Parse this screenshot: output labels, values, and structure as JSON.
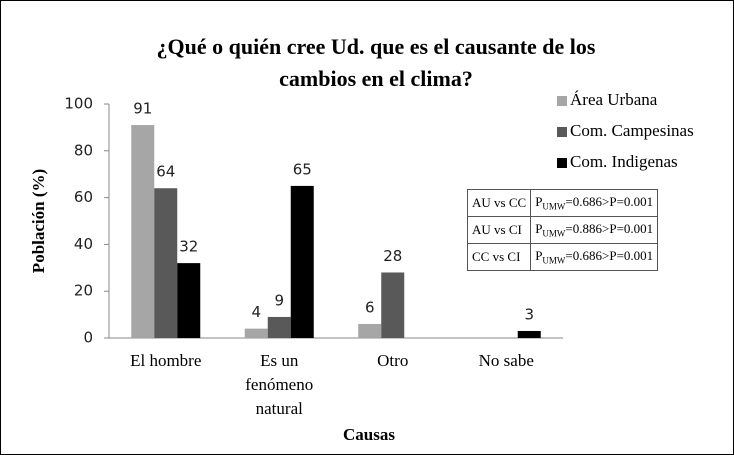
{
  "chart_data": {
    "type": "bar",
    "title": "¿Qué o quién cree Ud. que es el causante de los cambios en el clima?",
    "xlabel": "Causas",
    "ylabel": "Población (%)",
    "categories": [
      "El hombre",
      "Es un fenómeno natural",
      "Otro",
      "No sabe"
    ],
    "series": [
      {
        "name": "Área Urbana",
        "color": "#a6a6a6",
        "values": [
          91,
          4,
          6,
          null
        ]
      },
      {
        "name": "Com. Campesinas",
        "color": "#595959",
        "values": [
          64,
          9,
          28,
          null
        ]
      },
      {
        "name": "Com. Indigenas",
        "color": "#000000",
        "values": [
          32,
          65,
          null,
          3
        ]
      }
    ],
    "ylim": [
      0,
      100
    ],
    "yticks": [
      0,
      20,
      40,
      60,
      80,
      100
    ],
    "grid": false,
    "legend": "upper right",
    "annotation_table": [
      {
        "label": "AU vs CC",
        "p": "P",
        "sub": "UMW",
        "rest": "=0.686>P=0.001"
      },
      {
        "label": "AU vs CI",
        "p": "P",
        "sub": "UMW",
        "rest": "=0.886>P=0.001"
      },
      {
        "label": "CC vs CI",
        "p": "P",
        "sub": "UMW",
        "rest": "=0.686>P=0.001"
      }
    ]
  }
}
